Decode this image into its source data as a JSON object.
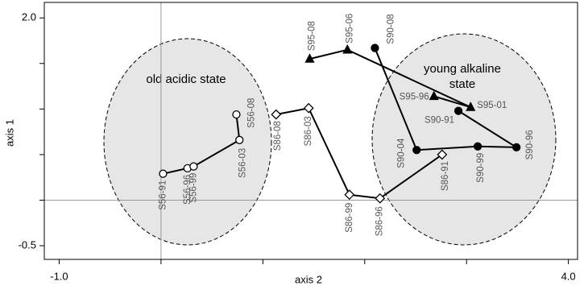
{
  "chart_data": {
    "type": "scatter",
    "x_label": "axis 2",
    "y_label": "axis 1",
    "xlim": [
      -1.146,
      4.09
    ],
    "ylim": [
      -0.65,
      2.17
    ],
    "xticks": [
      {
        "value": -1,
        "label": "-1.0"
      },
      {
        "value": 4,
        "label": "4.0"
      }
    ],
    "xminorticks": [
      0,
      1,
      2,
      3
    ],
    "yticks": [
      {
        "value": 2,
        "label": "2.0"
      },
      {
        "value": -0.5,
        "label": "-0.5"
      }
    ],
    "yminorticks": [
      1.5,
      1,
      0.5,
      0
    ],
    "zero_lines": true,
    "annotations": [
      "old acidic state",
      "young alkaline",
      "state"
    ],
    "series": [
      {
        "marker": "circle-open",
        "color": "#000000",
        "x": [
          0.02,
          0.26,
          0.32,
          0.77,
          0.74
        ],
        "values": [
          0.29,
          0.35,
          0.37,
          0.66,
          0.94
        ],
        "labels": [
          "S56-91",
          "S56-96",
          "S56-99",
          "S56-03",
          "S56-08"
        ]
      },
      {
        "marker": "diamond-open",
        "color": "#000000",
        "x": [
          1.13,
          1.45,
          1.85,
          2.15,
          2.76
        ],
        "values": [
          0.94,
          1.01,
          0.06,
          0.02,
          0.5
        ],
        "labels": [
          "S86-08",
          "S86-03",
          "S86-99",
          "S86-96",
          "S86-91"
        ]
      },
      {
        "marker": "circle-filled",
        "color": "#000000",
        "x": [
          2.1,
          2.51,
          3.11,
          3.49,
          2.92
        ],
        "values": [
          1.67,
          0.55,
          0.59,
          0.58,
          0.98
        ],
        "labels": [
          "S90-08",
          "S90-04",
          "S90-99",
          "S90-96",
          "S90-91"
        ]
      },
      {
        "marker": "triangle-filled",
        "color": "#000000",
        "x": [
          1.46,
          1.83,
          3.04,
          2.68
        ],
        "values": [
          1.55,
          1.65,
          1.02,
          1.14
        ],
        "labels": [
          "S95-08",
          "S95-06",
          "S95-01",
          "S95-96"
        ]
      }
    ]
  }
}
